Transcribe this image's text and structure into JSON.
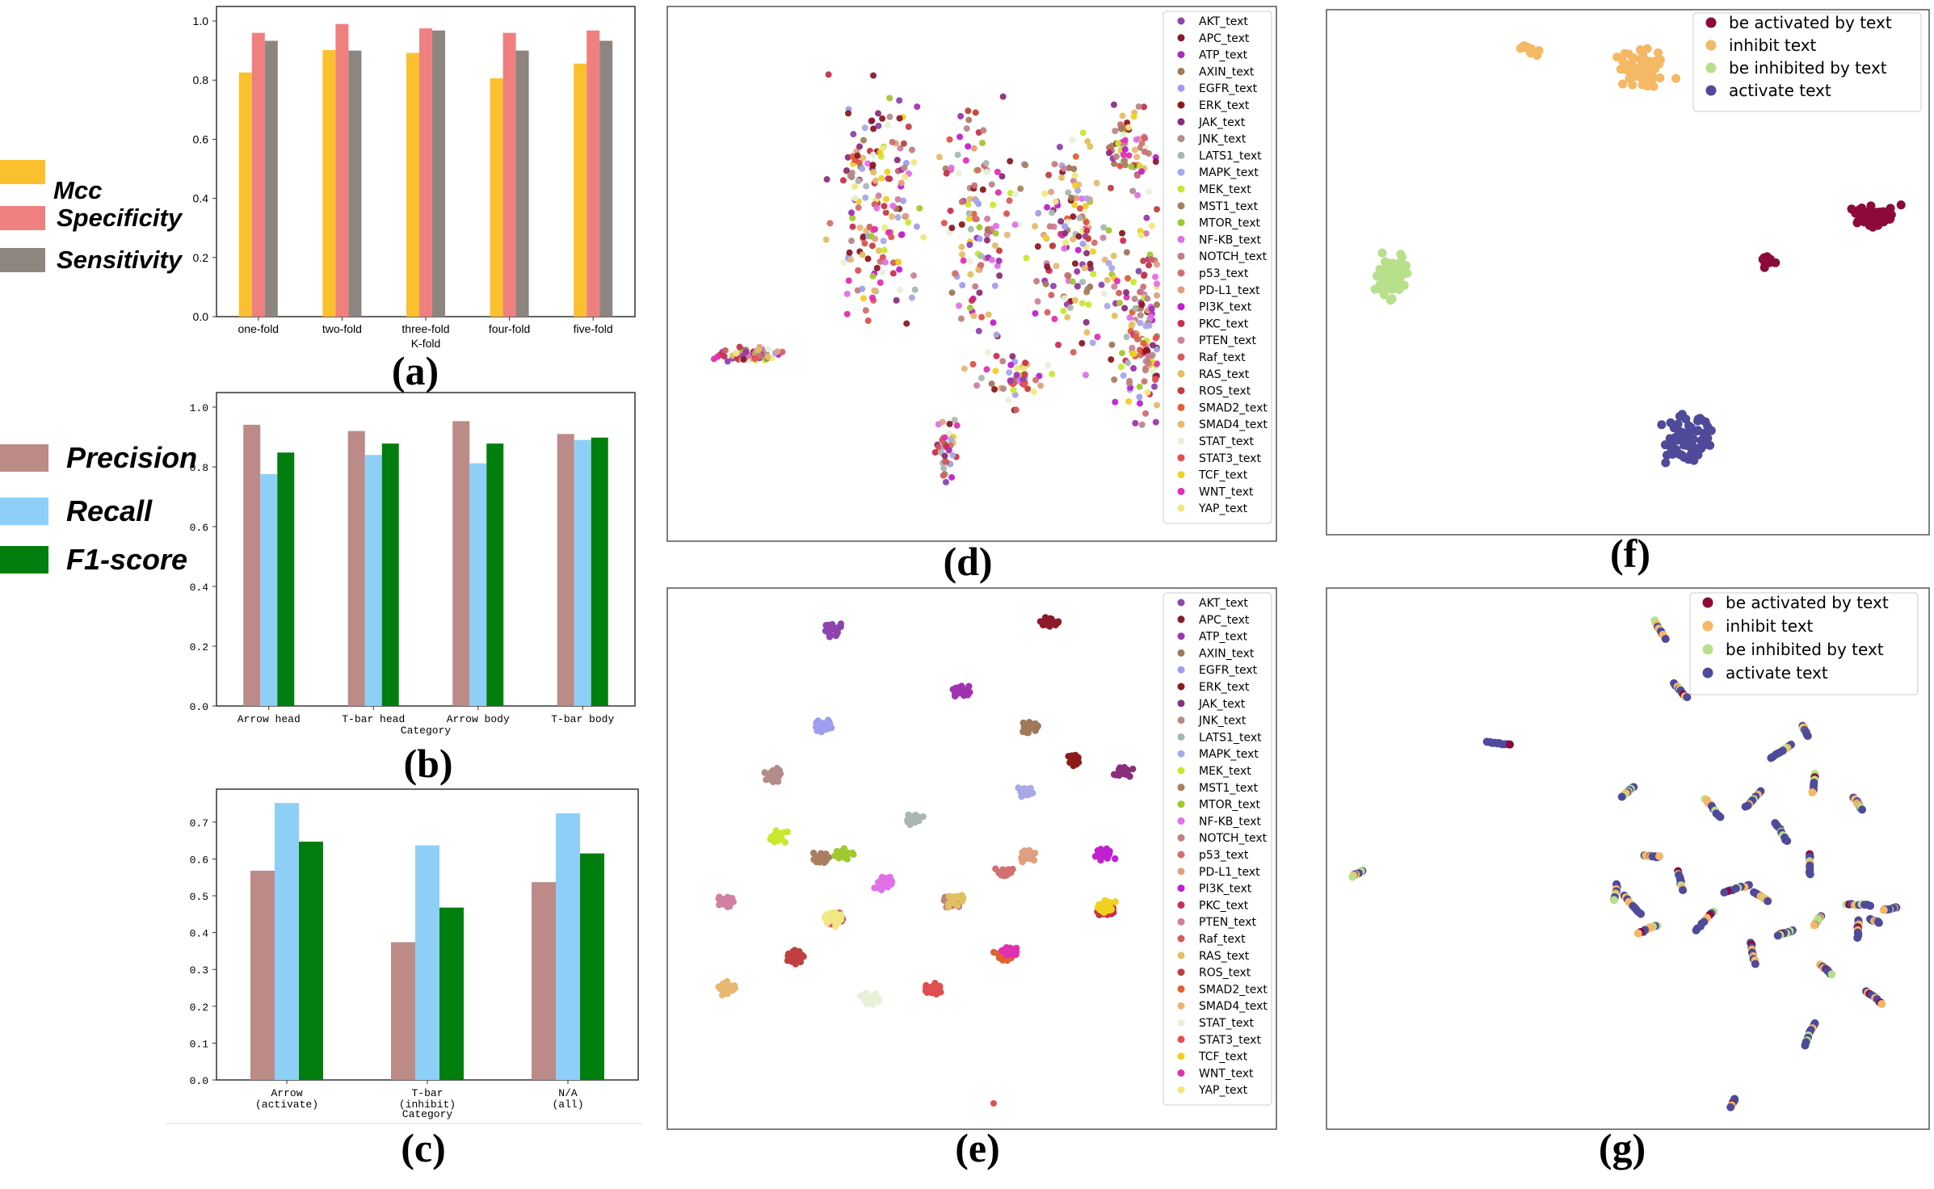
{
  "captions": {
    "a": "(a)",
    "b": "(b)",
    "c": "(c)",
    "d": "(d)",
    "e": "(e)",
    "f": "(f)",
    "g": "(g)"
  },
  "legend_a": [
    {
      "label": "Mcc",
      "color": "#FBC02D"
    },
    {
      "label": "Specificity",
      "color": "#F08080"
    },
    {
      "label": "Sensitivity",
      "color": "#8C8580"
    }
  ],
  "legend_bc": [
    {
      "label": "Precision",
      "color": "#BC8A87"
    },
    {
      "label": "Recall",
      "color": "#8ECFF8"
    },
    {
      "label": "F1-score",
      "color": "#007F0E"
    }
  ],
  "chart_data": [
    {
      "id": "a",
      "type": "bar",
      "categories": [
        "one-fold",
        "two-fold",
        "three-fold",
        "four-fold",
        "five-fold"
      ],
      "xlabel": "K-fold",
      "ylabel": "",
      "ylim": [
        0,
        1.0
      ],
      "yticks": [
        "0.0",
        "0.2",
        "0.4",
        "0.6",
        "0.8",
        "1.0"
      ],
      "series": [
        {
          "name": "Mcc",
          "color": "#FBC02D",
          "values": [
            0.826,
            0.902,
            0.892,
            0.806,
            0.856
          ]
        },
        {
          "name": "Specificity",
          "color": "#F08080",
          "values": [
            0.96,
            0.99,
            0.975,
            0.96,
            0.968
          ]
        },
        {
          "name": "Sensitivity",
          "color": "#8C8580",
          "values": [
            0.933,
            0.9,
            0.968,
            0.9,
            0.933
          ]
        }
      ]
    },
    {
      "id": "b",
      "type": "bar",
      "categories": [
        "Arrow head",
        "T-bar head",
        "Arrow body",
        "T-bar body"
      ],
      "xlabel": "Category",
      "ylabel": "",
      "ylim": [
        0,
        1.0
      ],
      "yticks": [
        "0.0",
        "0.2",
        "0.4",
        "0.6",
        "0.8",
        "1.0"
      ],
      "series": [
        {
          "name": "Precision",
          "color": "#BC8A87",
          "values": [
            0.941,
            0.92,
            0.953,
            0.91
          ]
        },
        {
          "name": "Recall",
          "color": "#8ECFF8",
          "values": [
            0.776,
            0.84,
            0.812,
            0.89
          ]
        },
        {
          "name": "F1-score",
          "color": "#007F0E",
          "values": [
            0.848,
            0.878,
            0.878,
            0.898
          ]
        }
      ]
    },
    {
      "id": "c",
      "type": "bar",
      "categories": [
        "Arrow\n(activate)",
        "T-bar\n(inhibit)",
        "N/A\n(all)"
      ],
      "xlabel": "Category",
      "ylabel": "",
      "ylim": [
        0,
        0.75
      ],
      "yticks": [
        "0.0",
        "0.1",
        "0.2",
        "0.3",
        "0.4",
        "0.5",
        "0.6",
        "0.7"
      ],
      "series": [
        {
          "name": "Precision",
          "color": "#BC8A87",
          "values": [
            0.568,
            0.374,
            0.537
          ]
        },
        {
          "name": "Recall",
          "color": "#8ECFF8",
          "values": [
            0.752,
            0.637,
            0.724
          ]
        },
        {
          "name": "F1-score",
          "color": "#007F0E",
          "values": [
            0.647,
            0.468,
            0.615
          ]
        }
      ]
    },
    {
      "id": "d",
      "type": "scatter",
      "legend": [
        "AKT_text",
        "APC_text",
        "ATP_text",
        "AXIN_text",
        "EGFR_text",
        "ERK_text",
        "JAK_text",
        "JNK_text",
        "LATS1_text",
        "MAPK_text",
        "MEK_text",
        "MST1_text",
        "MTOR_text",
        "NF-KB_text",
        "NOTCH_text",
        "p53_text",
        "PD-L1_text",
        "PI3K_text",
        "PKC_text",
        "PTEN_text",
        "Raf_text",
        "RAS_text",
        "ROS_text",
        "SMAD2_text",
        "SMAD4_text",
        "STAT_text",
        "STAT3_text",
        "TCF_text",
        "WNT_text",
        "YAP_text"
      ],
      "colors": [
        "#8E44AD",
        "#8B1A2B",
        "#A033B0",
        "#A0785A",
        "#9E9EF0",
        "#8B1A1A",
        "#8B2F7A",
        "#B48A8A",
        "#A8B8B0",
        "#A8A8E8",
        "#C8E830",
        "#A88060",
        "#A0C830",
        "#E070E8",
        "#C08080",
        "#D07070",
        "#E0A080",
        "#C020D0",
        "#C83050",
        "#D080A0",
        "#D06060",
        "#E0C060",
        "#C04040",
        "#E06030",
        "#E8B870",
        "#E8F0D8",
        "#E05050",
        "#F0D020",
        "#E030B0",
        "#F0E880"
      ],
      "grid": false,
      "distribution": "mixed"
    },
    {
      "id": "e",
      "type": "scatter",
      "legend": [
        "AKT_text",
        "APC_text",
        "ATP_text",
        "AXIN_text",
        "EGFR_text",
        "ERK_text",
        "JAK_text",
        "JNK_text",
        "LATS1_text",
        "MAPK_text",
        "MEK_text",
        "MST1_text",
        "MTOR_text",
        "NF-KB_text",
        "NOTCH_text",
        "p53_text",
        "PD-L1_text",
        "PI3K_text",
        "PKC_text",
        "PTEN_text",
        "Raf_text",
        "RAS_text",
        "ROS_text",
        "SMAD2_text",
        "SMAD4_text",
        "STAT_text",
        "STAT3_text",
        "TCF_text",
        "WNT_text",
        "YAP_text"
      ],
      "colors": [
        "#8E44AD",
        "#8B1A2B",
        "#A033B0",
        "#A0785A",
        "#9E9EF0",
        "#8B1A1A",
        "#8B2F7A",
        "#B48A8A",
        "#A8B8B0",
        "#A8A8E8",
        "#C8E830",
        "#A88060",
        "#A0C830",
        "#E070E8",
        "#C08080",
        "#D07070",
        "#E0A080",
        "#C020D0",
        "#C83050",
        "#D080A0",
        "#D06060",
        "#E0C060",
        "#C04040",
        "#E06030",
        "#E8B870",
        "#E8F0D8",
        "#E05050",
        "#F0D020",
        "#E030B0",
        "#F0E880"
      ],
      "grid": false,
      "distribution": "clustered"
    },
    {
      "id": "f",
      "type": "scatter",
      "legend": [
        "be activated by text",
        "inhibit text",
        "be inhibited by text",
        "activate text"
      ],
      "colors": [
        "#8B0A3A",
        "#F5B865",
        "#B8E08A",
        "#4F4A9A"
      ],
      "grid": false,
      "distribution": "clustered"
    },
    {
      "id": "g",
      "type": "scatter",
      "legend": [
        "be activated by text",
        "inhibit text",
        "be inhibited by text",
        "activate text"
      ],
      "colors": [
        "#8B0A3A",
        "#F5B865",
        "#B8E08A",
        "#4F4A9A"
      ],
      "grid": false,
      "distribution": "mixed"
    }
  ]
}
